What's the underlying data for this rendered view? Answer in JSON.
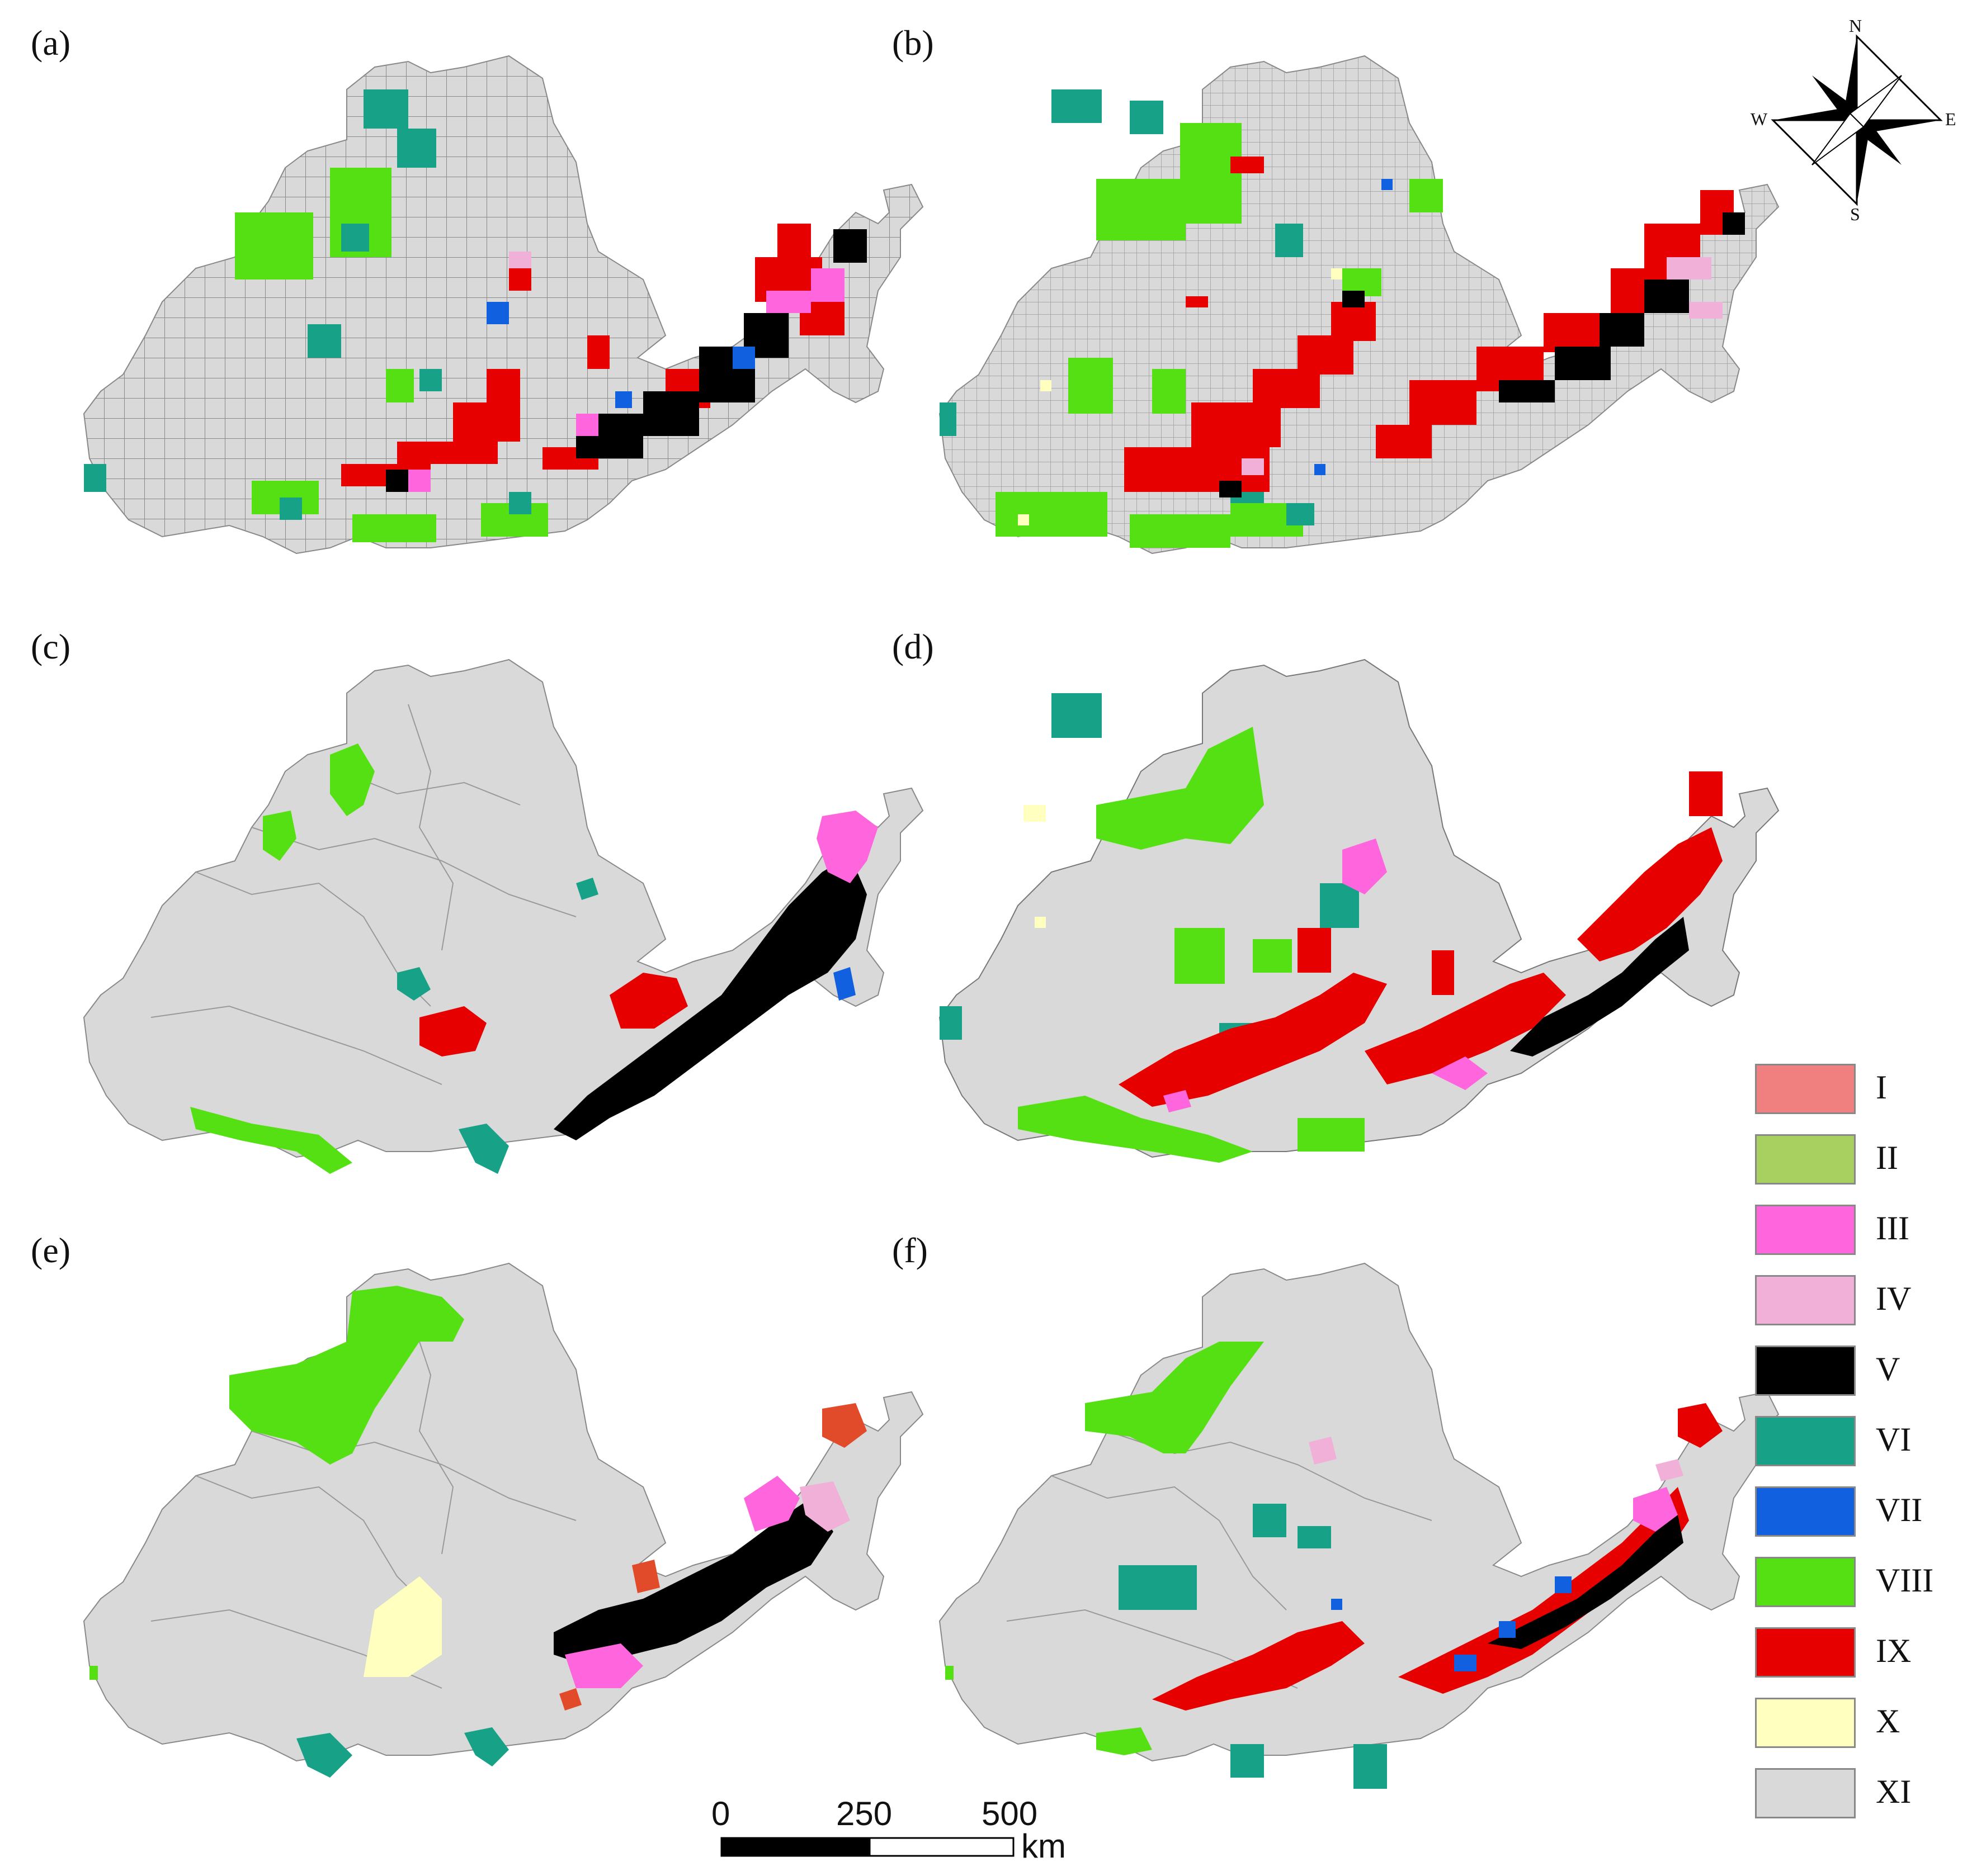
{
  "panels": [
    {
      "label": "(a)"
    },
    {
      "label": "(b)"
    },
    {
      "label": "(c)"
    },
    {
      "label": "(d)"
    },
    {
      "label": "(e)"
    },
    {
      "label": "(f)"
    }
  ],
  "compass": {
    "north": "N",
    "south": "S",
    "east": "E",
    "west": "W"
  },
  "legend": [
    {
      "label": "I",
      "color": "#f08080"
    },
    {
      "label": "II",
      "color": "#a8d060"
    },
    {
      "label": "III",
      "color": "#ff66dd"
    },
    {
      "label": "IV",
      "color": "#f0b0d8"
    },
    {
      "label": "V",
      "color": "#000000"
    },
    {
      "label": "VI",
      "color": "#17a287"
    },
    {
      "label": "VII",
      "color": "#1060e0"
    },
    {
      "label": "VIII",
      "color": "#55e014"
    },
    {
      "label": "IX",
      "color": "#e60000"
    },
    {
      "label": "X",
      "color": "#ffffc0"
    },
    {
      "label": "XI",
      "color": "#d9d9d9"
    }
  ],
  "scale_bar": {
    "ticks": [
      "0",
      "250",
      "500"
    ],
    "unit": "km"
  }
}
